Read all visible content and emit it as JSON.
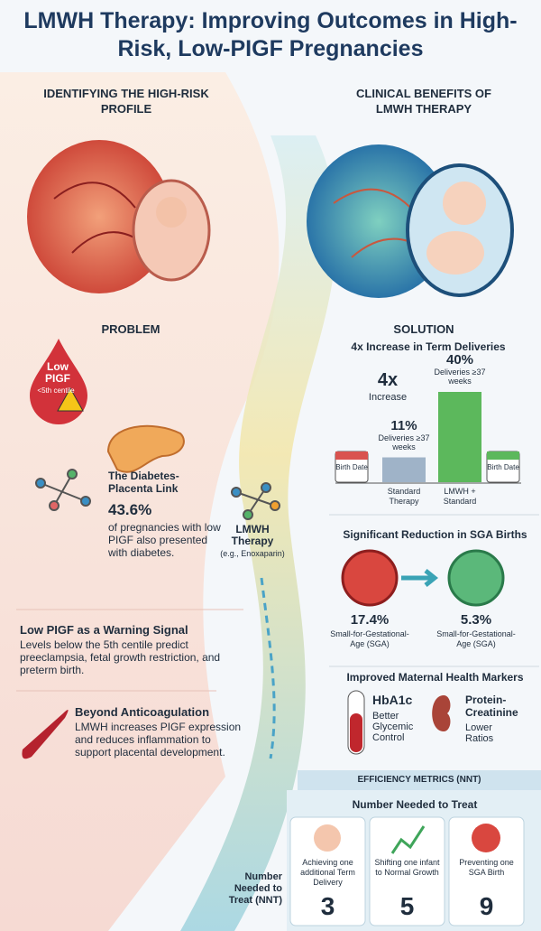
{
  "header": {
    "title": "LMWH Therapy: Improving Outcomes in High-Risk, Low-PIGF Pregnancies"
  },
  "left": {
    "heading": "IDENTIFYING THE HIGH-RISK PROFILE",
    "problem_label": "PROBLEM",
    "drop": {
      "label": "Low PIGF",
      "sub": "<5th centile"
    },
    "diabetes": {
      "title": "The Diabetes-Placenta Link",
      "stat": "43.6%",
      "text": "of pregnancies with low PIGF also presented with diabetes."
    },
    "warning": {
      "title": "Low PIGF as a Warning Signal",
      "text": "Levels below the 5th centile predict preeclampsia, fetal growth restriction, and preterm birth."
    },
    "beyond": {
      "title": "Beyond Anticoagulation",
      "text": "LMWH increases PIGF expression and reduces inflammation to support placental development."
    }
  },
  "center": {
    "title": "LMWH Therapy",
    "sub": "(e.g., Enoxaparin)"
  },
  "right": {
    "heading": "CLINICAL BENEFITS OF LMWH THERAPY",
    "solution_label": "SOLUTION",
    "term": {
      "title": "4x Increase in Term Deliveries",
      "big": "4x",
      "big_sub": "Increase",
      "chart": {
        "type": "bar",
        "categories": [
          "Standard Therapy",
          "LMWH + Standard"
        ],
        "values": [
          11,
          40
        ],
        "value_labels": [
          "11%",
          "40%"
        ],
        "value_subs": [
          "Deliveries ≥37 weeks",
          "Deliveries ≥37 weeks"
        ],
        "colors": [
          "#9fb3c8",
          "#5cb85c"
        ]
      },
      "calendar": [
        "Birth Date",
        "Birth Date"
      ]
    },
    "sga": {
      "title": "Significant Reduction in SGA Births",
      "items": [
        {
          "stat": "17.4%",
          "label": "Small-for-Gestational-Age (SGA)"
        },
        {
          "stat": "5.3%",
          "label": "Small-for-Gestational-Age (SGA)"
        }
      ]
    },
    "maternal": {
      "title": "Improved Maternal Health Markers",
      "items": [
        {
          "title": "HbA1c",
          "text": "Better Glycemic Control"
        },
        {
          "title": "Protein-Creatinine",
          "text": "Lower Ratios"
        }
      ]
    },
    "nnt": {
      "banner": "EFFICIENCY METRICS (NNT)",
      "title": "Number Needed to Treat",
      "side_label": "Number Needed to Treat (NNT)",
      "cards": [
        {
          "text": "Achieving one additional Term Delivery",
          "value": "3"
        },
        {
          "text": "Shifting one infant to Normal Growth",
          "value": "5"
        },
        {
          "text": "Preventing one SGA Birth",
          "value": "9"
        }
      ]
    }
  }
}
